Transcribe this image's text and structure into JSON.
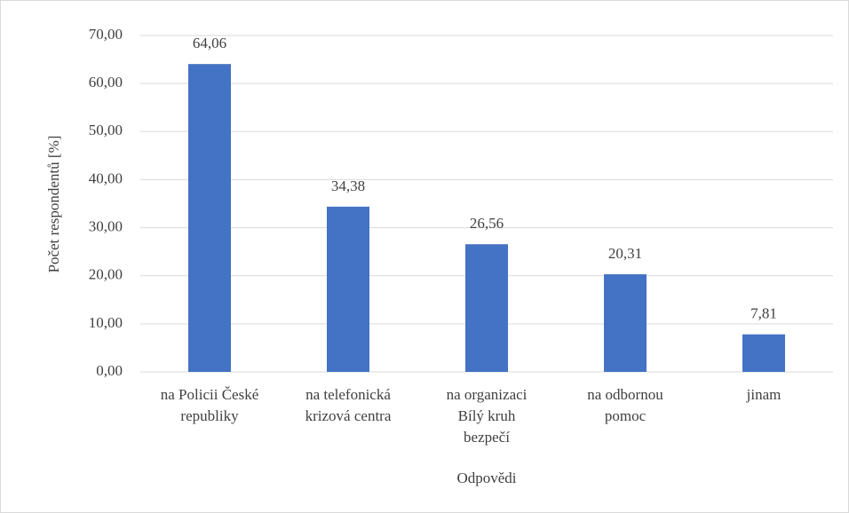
{
  "chart_data": {
    "type": "bar",
    "categories": [
      "na Policii České\nrepubliky",
      "na telefonická\nkrizová centra",
      "na organizaci\nBílý kruh\nbezpečí",
      "na odbornou\npomoc",
      "jinam"
    ],
    "values": [
      64.06,
      34.38,
      26.56,
      20.31,
      7.81
    ],
    "value_labels": [
      "64,06",
      "34,38",
      "26,56",
      "20,31",
      "7,81"
    ],
    "color": "#4472c4",
    "x_label": "Odpovědi",
    "y_label": "Počet respondentů [%]",
    "ylim": [
      0,
      70
    ],
    "yticks": [
      {
        "value": 0,
        "label": "0,00"
      },
      {
        "value": 10,
        "label": "10,00"
      },
      {
        "value": 20,
        "label": "20,00"
      },
      {
        "value": 30,
        "label": "30,00"
      },
      {
        "value": 40,
        "label": "40,00"
      },
      {
        "value": 50,
        "label": "50,00"
      },
      {
        "value": 60,
        "label": "60,00"
      },
      {
        "value": 70,
        "label": "70,00"
      }
    ],
    "grid": true
  }
}
